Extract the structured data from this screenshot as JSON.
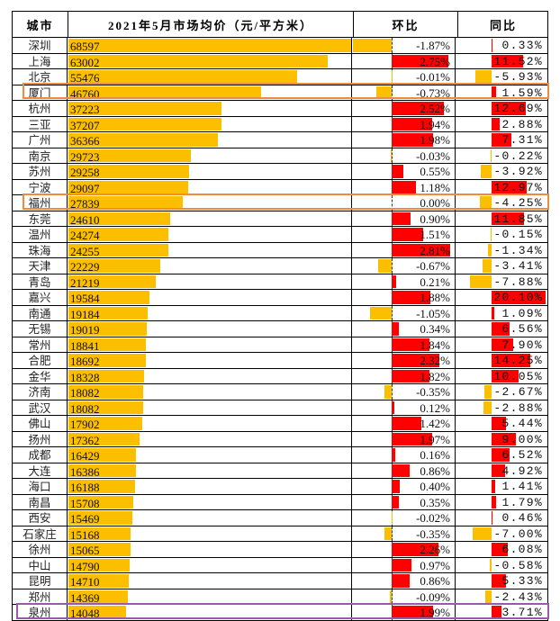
{
  "header": {
    "city": "城市",
    "price": "2021年5月市场均价（元/平方米）",
    "mom": "环比",
    "yoy": "同比"
  },
  "colors": {
    "price_bar": "#fbbf00",
    "positive": "#ff0000",
    "negative": "#fbbf00",
    "highlight_orange": "#f08a3c",
    "highlight_purple": "#9a5aa8"
  },
  "highlighted_rows": {
    "orange": [
      "厦门",
      "福州"
    ],
    "purple": [
      "泉州"
    ]
  },
  "chart_data": {
    "type": "table",
    "columns": [
      "城市",
      "2021年5月市场均价（元/平方米）",
      "环比",
      "同比"
    ],
    "rows": [
      {
        "city": "深圳",
        "price": 68597,
        "mom": -1.87,
        "yoy": 0.33
      },
      {
        "city": "上海",
        "price": 63002,
        "mom": 2.75,
        "yoy": 11.52
      },
      {
        "city": "北京",
        "price": 55476,
        "mom": -0.01,
        "yoy": -5.93
      },
      {
        "city": "厦门",
        "price": 46760,
        "mom": -0.73,
        "yoy": 1.59
      },
      {
        "city": "杭州",
        "price": 37223,
        "mom": 2.52,
        "yoy": 12.69
      },
      {
        "city": "三亚",
        "price": 37207,
        "mom": 1.94,
        "yoy": 2.88
      },
      {
        "city": "广州",
        "price": 36366,
        "mom": 1.98,
        "yoy": 7.31
      },
      {
        "city": "南京",
        "price": 29723,
        "mom": -0.03,
        "yoy": -0.22
      },
      {
        "city": "苏州",
        "price": 29258,
        "mom": 0.55,
        "yoy": -3.92
      },
      {
        "city": "宁波",
        "price": 29097,
        "mom": 1.18,
        "yoy": 12.97
      },
      {
        "city": "福州",
        "price": 27839,
        "mom": 0.0,
        "yoy": -4.25
      },
      {
        "city": "东莞",
        "price": 24610,
        "mom": 0.9,
        "yoy": 11.85
      },
      {
        "city": "温州",
        "price": 24274,
        "mom": 1.51,
        "yoy": -0.15
      },
      {
        "city": "珠海",
        "price": 24255,
        "mom": 2.81,
        "yoy": -1.34
      },
      {
        "city": "天津",
        "price": 22229,
        "mom": -0.67,
        "yoy": -3.41
      },
      {
        "city": "青岛",
        "price": 21219,
        "mom": 0.21,
        "yoy": -7.88
      },
      {
        "city": "嘉兴",
        "price": 19584,
        "mom": 1.88,
        "yoy": 20.1
      },
      {
        "city": "南通",
        "price": 19184,
        "mom": -1.05,
        "yoy": 1.09
      },
      {
        "city": "无锡",
        "price": 19019,
        "mom": 0.34,
        "yoy": 6.56
      },
      {
        "city": "常州",
        "price": 18841,
        "mom": 1.84,
        "yoy": 7.9
      },
      {
        "city": "合肥",
        "price": 18692,
        "mom": 2.32,
        "yoy": 14.25
      },
      {
        "city": "金华",
        "price": 18328,
        "mom": 1.82,
        "yoy": 10.05
      },
      {
        "city": "济南",
        "price": 18082,
        "mom": -0.35,
        "yoy": -2.67
      },
      {
        "city": "武汉",
        "price": 18082,
        "mom": 0.12,
        "yoy": -2.88
      },
      {
        "city": "佛山",
        "price": 17902,
        "mom": 1.42,
        "yoy": 5.44
      },
      {
        "city": "扬州",
        "price": 17362,
        "mom": 1.97,
        "yoy": 9.0
      },
      {
        "city": "成都",
        "price": 16429,
        "mom": 0.16,
        "yoy": 6.52
      },
      {
        "city": "大连",
        "price": 16386,
        "mom": 0.86,
        "yoy": 4.92
      },
      {
        "city": "海口",
        "price": 16188,
        "mom": 0.4,
        "yoy": 1.41
      },
      {
        "city": "南昌",
        "price": 15708,
        "mom": 0.35,
        "yoy": 1.79
      },
      {
        "city": "西安",
        "price": 15469,
        "mom": -0.02,
        "yoy": 0.46
      },
      {
        "city": "石家庄",
        "price": 15168,
        "mom": -0.35,
        "yoy": -7.0
      },
      {
        "city": "徐州",
        "price": 15065,
        "mom": 2.26,
        "yoy": 6.08
      },
      {
        "city": "中山",
        "price": 14790,
        "mom": 0.97,
        "yoy": -0.58
      },
      {
        "city": "昆明",
        "price": 14710,
        "mom": 0.86,
        "yoy": 5.33
      },
      {
        "city": "郑州",
        "price": 14369,
        "mom": -0.09,
        "yoy": -2.43
      },
      {
        "city": "泉州",
        "price": 14048,
        "mom": 1.99,
        "yoy": 3.71
      }
    ]
  }
}
